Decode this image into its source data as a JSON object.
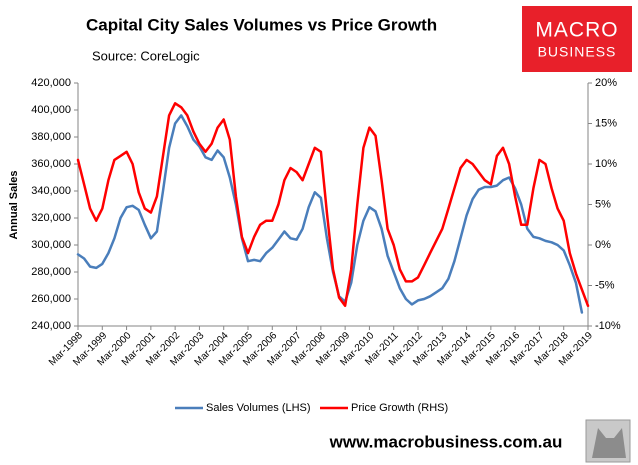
{
  "chart_data": {
    "type": "line",
    "title": "Capital City Sales Volumes vs Price Growth",
    "subtitle": "Source: CoreLogic",
    "y_label": "Annual Sales",
    "categories": [
      "Mar-1998",
      null,
      null,
      null,
      "Mar-1999",
      null,
      null,
      null,
      "Mar-2000",
      null,
      null,
      null,
      "Mar-2001",
      null,
      null,
      null,
      "Mar-2002",
      null,
      null,
      null,
      "Mar-2003",
      null,
      null,
      null,
      "Mar-2004",
      null,
      null,
      null,
      "Mar-2005",
      null,
      null,
      null,
      "Mar-2006",
      null,
      null,
      null,
      "Mar-2007",
      null,
      null,
      null,
      "Mar-2008",
      null,
      null,
      null,
      "Mar-2009",
      null,
      null,
      null,
      "Mar-2010",
      null,
      null,
      null,
      "Mar-2011",
      null,
      null,
      null,
      "Mar-2012",
      null,
      null,
      null,
      "Mar-2013",
      null,
      null,
      null,
      "Mar-2014",
      null,
      null,
      null,
      "Mar-2015",
      null,
      null,
      null,
      "Mar-2016",
      null,
      null,
      null,
      "Mar-2017",
      null,
      null,
      null,
      "Mar-2018",
      null,
      null,
      null,
      "Mar-2019"
    ],
    "series": [
      {
        "name": "Sales Volumes (LHS)",
        "color": "#4a7ebb",
        "axis": "y",
        "values": [
          293000,
          290000,
          284000,
          283000,
          286000,
          294000,
          305000,
          320000,
          328000,
          329000,
          326000,
          315000,
          305000,
          310000,
          340000,
          372000,
          390000,
          396000,
          388000,
          378000,
          373000,
          365000,
          363000,
          370000,
          365000,
          350000,
          330000,
          305000,
          288000,
          289000,
          288000,
          294000,
          298000,
          304000,
          310000,
          305000,
          304000,
          312000,
          328000,
          339000,
          335000,
          305000,
          280000,
          262000,
          258000,
          272000,
          300000,
          318000,
          328000,
          325000,
          312000,
          292000,
          280000,
          268000,
          260000,
          256000,
          259000,
          260000,
          262000,
          265000,
          268000,
          275000,
          288000,
          305000,
          322000,
          334000,
          341000,
          343000,
          343000,
          344000,
          348000,
          350000,
          342000,
          330000,
          312000,
          306000,
          305000,
          303000,
          302000,
          300000,
          296000,
          285000,
          272000,
          250000,
          null
        ]
      },
      {
        "name": "Price Growth (RHS)",
        "color": "#ff0000",
        "axis": "y2",
        "values": [
          10.5,
          7.5,
          4.5,
          3,
          4.5,
          8,
          10.5,
          11,
          11.5,
          10,
          6.5,
          4.5,
          4,
          6,
          11,
          16,
          17.5,
          17,
          16,
          14,
          12.5,
          11.5,
          12.5,
          14.5,
          15.5,
          13,
          6,
          1,
          -1,
          1,
          2.5,
          3,
          3,
          5,
          8,
          9.5,
          9,
          8,
          10,
          12,
          11.5,
          4,
          -3,
          -6.5,
          -7.5,
          -3,
          5,
          12,
          14.5,
          13.5,
          8,
          2,
          0,
          -3,
          -4.5,
          -4.5,
          -4,
          -2.5,
          -1,
          0.5,
          2,
          4.5,
          7,
          9.5,
          10.5,
          10,
          9,
          8,
          7.5,
          11,
          12,
          10,
          6,
          2.5,
          2.5,
          7,
          10.5,
          10,
          7,
          4.5,
          3,
          -1,
          -3.5,
          -5.5,
          -7.5
        ]
      }
    ],
    "ylim": [
      240000,
      420000
    ],
    "yticks": [
      {
        "value": 240000,
        "label": "240,000"
      },
      {
        "value": 260000,
        "label": "260,000"
      },
      {
        "value": 280000,
        "label": "280,000"
      },
      {
        "value": 300000,
        "label": "300,000"
      },
      {
        "value": 320000,
        "label": "320,000"
      },
      {
        "value": 340000,
        "label": "340,000"
      },
      {
        "value": 360000,
        "label": "360,000"
      },
      {
        "value": 380000,
        "label": "380,000"
      },
      {
        "value": 400000,
        "label": "400,000"
      },
      {
        "value": 420000,
        "label": "420,000"
      }
    ],
    "y2lim": [
      -10,
      20
    ],
    "y2ticks": [
      {
        "value": -10,
        "label": "-10%"
      },
      {
        "value": -5,
        "label": "-5%"
      },
      {
        "value": 0,
        "label": "0%"
      },
      {
        "value": 5,
        "label": "5%"
      },
      {
        "value": 10,
        "label": "10%"
      },
      {
        "value": 15,
        "label": "15%"
      },
      {
        "value": 20,
        "label": "20%"
      }
    ],
    "grid": false,
    "legend": "bottom"
  },
  "branding": {
    "logo": [
      "MACRO",
      "BUSINESS"
    ],
    "website": "www.macrobusiness.com.au"
  }
}
